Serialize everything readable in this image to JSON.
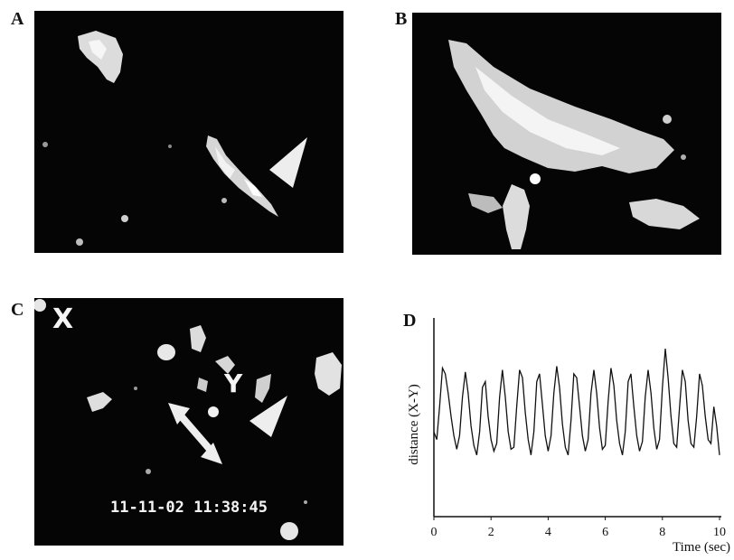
{
  "figure": {
    "panels": [
      {
        "letter": "A"
      },
      {
        "letter": "B"
      },
      {
        "letter": "C"
      },
      {
        "letter": "D"
      }
    ],
    "panel_c": {
      "marker_x": "X",
      "marker_y": "Y",
      "timestamp": "11-11-02 11:38:45"
    }
  },
  "chart_data": {
    "type": "line",
    "xlabel": "Time (sec)",
    "ylabel": "distance (X-Y)",
    "xlim": [
      0,
      10
    ],
    "ylim": [
      0,
      1
    ],
    "xticks": [
      "0",
      "2",
      "4",
      "6",
      "8",
      "10"
    ],
    "series": [
      {
        "x": [
          0.0,
          0.1,
          0.2,
          0.3,
          0.4,
          0.5,
          0.6,
          0.7,
          0.8,
          0.9,
          1.0,
          1.1,
          1.2,
          1.3,
          1.4,
          1.5,
          1.6,
          1.7,
          1.8,
          1.9,
          2.0,
          2.1,
          2.2,
          2.3,
          2.4,
          2.5,
          2.6,
          2.7,
          2.8,
          2.9,
          3.0,
          3.1,
          3.2,
          3.3,
          3.4,
          3.5,
          3.6,
          3.7,
          3.8,
          3.9,
          4.0,
          4.1,
          4.2,
          4.3,
          4.4,
          4.5,
          4.6,
          4.7,
          4.8,
          4.9,
          5.0,
          5.1,
          5.2,
          5.3,
          5.4,
          5.5,
          5.6,
          5.7,
          5.8,
          5.9,
          6.0,
          6.1,
          6.2,
          6.3,
          6.4,
          6.5,
          6.6,
          6.7,
          6.8,
          6.9,
          7.0,
          7.1,
          7.2,
          7.3,
          7.4,
          7.5,
          7.6,
          7.7,
          7.8,
          7.9,
          8.0,
          8.1,
          8.2,
          8.3,
          8.4,
          8.5,
          8.6,
          8.7,
          8.8,
          8.9,
          9.0,
          9.1,
          9.2,
          9.3,
          9.4,
          9.5,
          9.6,
          9.7,
          9.8,
          9.9,
          10.0
        ],
        "y": [
          0.42,
          0.38,
          0.55,
          0.75,
          0.72,
          0.62,
          0.5,
          0.4,
          0.33,
          0.4,
          0.6,
          0.73,
          0.62,
          0.45,
          0.35,
          0.3,
          0.42,
          0.65,
          0.68,
          0.5,
          0.38,
          0.32,
          0.36,
          0.6,
          0.74,
          0.6,
          0.42,
          0.33,
          0.34,
          0.55,
          0.74,
          0.7,
          0.52,
          0.38,
          0.3,
          0.42,
          0.68,
          0.72,
          0.56,
          0.4,
          0.32,
          0.4,
          0.62,
          0.76,
          0.65,
          0.46,
          0.34,
          0.3,
          0.48,
          0.72,
          0.7,
          0.55,
          0.4,
          0.32,
          0.38,
          0.62,
          0.74,
          0.62,
          0.44,
          0.33,
          0.35,
          0.58,
          0.75,
          0.66,
          0.48,
          0.36,
          0.3,
          0.42,
          0.68,
          0.72,
          0.55,
          0.4,
          0.32,
          0.37,
          0.6,
          0.74,
          0.62,
          0.44,
          0.33,
          0.38,
          0.65,
          0.85,
          0.7,
          0.5,
          0.36,
          0.34,
          0.55,
          0.74,
          0.68,
          0.48,
          0.36,
          0.34,
          0.5,
          0.72,
          0.66,
          0.5,
          0.38,
          0.36,
          0.55,
          0.45,
          0.3
        ]
      }
    ]
  }
}
